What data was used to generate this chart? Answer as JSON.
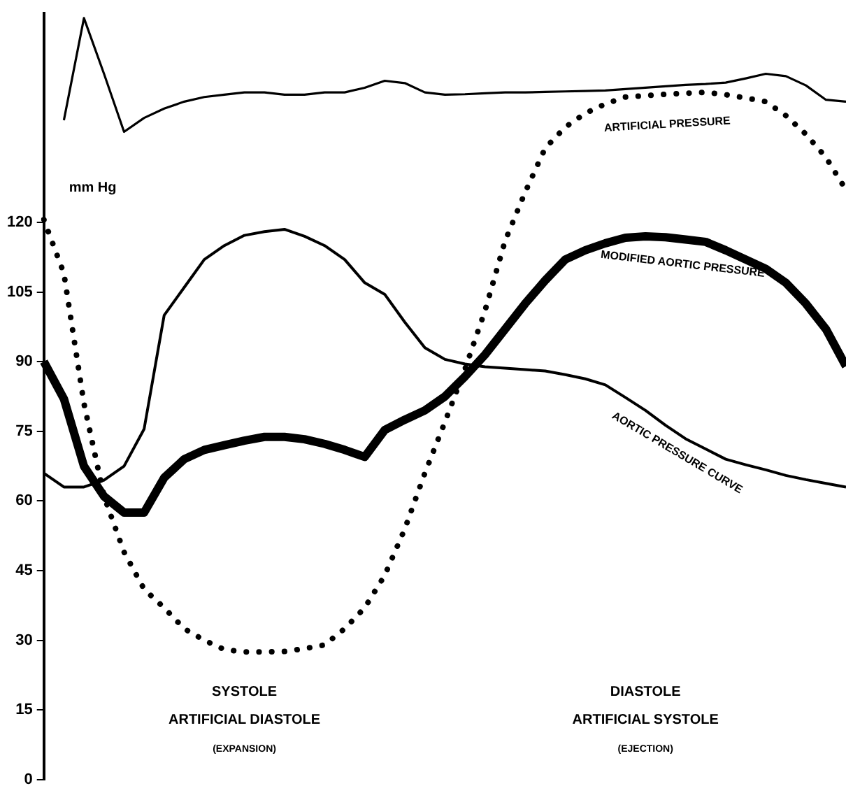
{
  "chart_data": {
    "type": "line",
    "ylabel": "mm Hg",
    "ylim": [
      0,
      165
    ],
    "yticks": [
      0,
      15,
      30,
      45,
      60,
      75,
      90,
      105,
      120
    ],
    "tick_labels": "y",
    "grid": false,
    "legend": false,
    "marker": "none",
    "categories": [
      null,
      null,
      null,
      null,
      null,
      null,
      null,
      null,
      null,
      null,
      null,
      null,
      null,
      null,
      null,
      null,
      null,
      null,
      null,
      null,
      null,
      null,
      null,
      null,
      null,
      null,
      null,
      null,
      null,
      null,
      null,
      null,
      null,
      null,
      null,
      null,
      null,
      null,
      null,
      null,
      null
    ],
    "series": [
      {
        "color": "#000000",
        "values": [
          null,
          142,
          164,
          152,
          139.5,
          142.5,
          144.5,
          146,
          147,
          147.5,
          148,
          148,
          147.5,
          147.5,
          148,
          148,
          149,
          150.5,
          150,
          148,
          147.5,
          147.6,
          147.8,
          148,
          148,
          148.1,
          148.2,
          148.3,
          148.4,
          148.7,
          149,
          149.3,
          149.6,
          149.8,
          150.1,
          151,
          152,
          151.5,
          149.5,
          146.4,
          146
        ]
      },
      {
        "name": "ARTIFICIAL PRESSURE",
        "color": "#000000",
        "line_style": "dotted",
        "values": [
          120.6,
          109,
          81,
          61,
          49,
          41,
          37,
          32.5,
          30,
          28,
          27.5,
          27.5,
          27.6,
          28.2,
          29,
          32.5,
          37,
          44,
          54,
          66,
          77,
          88.4,
          101,
          116,
          126.5,
          136,
          140.5,
          143.5,
          145.5,
          147,
          147.3,
          147.6,
          147.8,
          148,
          147.5,
          146.8,
          146,
          143,
          139,
          134,
          127
        ]
      },
      {
        "name": "MODIFIED AORTIC PRESSURE",
        "color": "#000000",
        "values": [
          90,
          82,
          67.5,
          61,
          57.5,
          57.5,
          65,
          69,
          71,
          72,
          73,
          73.8,
          73.8,
          73.3,
          72.3,
          71,
          69.5,
          75.3,
          77.5,
          79.5,
          82.5,
          86.8,
          91.5,
          97,
          102.5,
          107.5,
          112,
          114,
          115.5,
          116.7,
          117,
          116.8,
          116.3,
          115.8,
          114,
          112,
          110,
          107,
          102.5,
          97,
          89
        ]
      },
      {
        "name": "AORTIC PRESSURE CURVE",
        "color": "#000000",
        "values": [
          66,
          63,
          63,
          64.5,
          67.5,
          75.5,
          100,
          106,
          112,
          115,
          117.2,
          118,
          118.5,
          117,
          115,
          112,
          107,
          104.5,
          98.5,
          93,
          90.5,
          89.5,
          88.9,
          88.6,
          88.3,
          88,
          87.2,
          86.3,
          85,
          82.3,
          79.5,
          76.3,
          73.4,
          71.2,
          69,
          67.8,
          66.7,
          65.5,
          64.6,
          63.8,
          63
        ]
      }
    ],
    "annotations": [
      "SYSTOLE\nARTIFICIAL DIASTOLE\n(EXPANSION)",
      "DIASTOLE\nARTIFICIAL SYSTOLE\n(EJECTION)"
    ]
  }
}
